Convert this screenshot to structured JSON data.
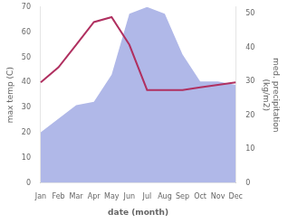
{
  "chart_data": {
    "type": "line",
    "categories": [
      "Jan",
      "Feb",
      "Mar",
      "Apr",
      "May",
      "Jun",
      "Jul",
      "Aug",
      "Sep",
      "Oct",
      "Nov",
      "Dec"
    ],
    "series": [
      {
        "type": "area",
        "color": "#b0b8e8",
        "axis": "y2",
        "values": [
          15,
          19,
          23,
          24,
          32,
          50,
          52,
          50,
          38,
          30,
          30,
          29
        ]
      },
      {
        "type": "line",
        "color": "#b03060",
        "values": [
          40,
          46,
          55,
          64,
          66,
          55,
          37,
          37,
          37,
          38,
          39,
          40
        ]
      }
    ],
    "xlabel": "date (month)",
    "ylabel": "max temp (C)",
    "y2label": "med. precipitation\n(kg/m2)",
    "ylim": [
      0,
      70
    ],
    "yticks": [
      0,
      10,
      20,
      30,
      40,
      50,
      60,
      70
    ],
    "y2lim": [
      0,
      52
    ],
    "y2ticks": [
      0,
      10,
      20,
      30,
      40,
      50
    ],
    "grid": false
  }
}
